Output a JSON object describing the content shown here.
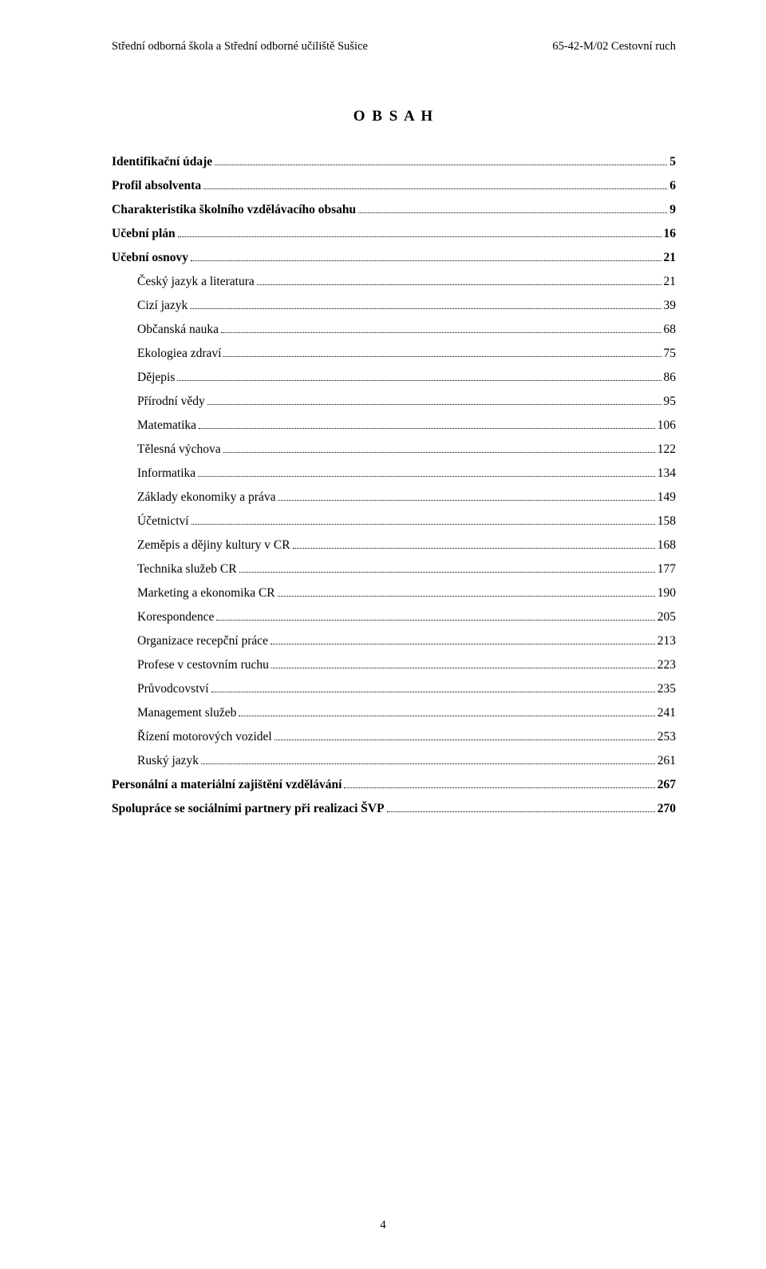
{
  "header": {
    "left": "Střední odborná škola a Střední odborné učiliště Sušice",
    "right": "65-42-M/02 Cestovní ruch"
  },
  "title": "O B S A H",
  "toc": [
    {
      "label": "Identifikační údaje",
      "page": "5",
      "bold": true,
      "indent": false
    },
    {
      "label": "Profil absolventa",
      "page": "6",
      "bold": true,
      "indent": false
    },
    {
      "label": "Charakteristika školního vzdělávacího obsahu",
      "page": "9",
      "bold": true,
      "indent": false
    },
    {
      "label": "Učební plán",
      "page": "16",
      "bold": true,
      "indent": false
    },
    {
      "label": "Učební osnovy",
      "page": "21",
      "bold": true,
      "indent": false
    },
    {
      "label": "Český jazyk a literatura",
      "page": "21",
      "bold": false,
      "indent": true
    },
    {
      "label": "Cizí jazyk",
      "page": "39",
      "bold": false,
      "indent": true
    },
    {
      "label": "Občanská nauka",
      "page": "68",
      "bold": false,
      "indent": true
    },
    {
      "label": "Ekologiea zdraví",
      "page": "75",
      "bold": false,
      "indent": true
    },
    {
      "label": "Dějepis",
      "page": "86",
      "bold": false,
      "indent": true
    },
    {
      "label": "Přírodní vědy",
      "page": "95",
      "bold": false,
      "indent": true
    },
    {
      "label": "Matematika",
      "page": "106",
      "bold": false,
      "indent": true
    },
    {
      "label": "Tělesná výchova",
      "page": "122",
      "bold": false,
      "indent": true
    },
    {
      "label": "Informatika",
      "page": "134",
      "bold": false,
      "indent": true
    },
    {
      "label": "Základy ekonomiky a práva",
      "page": "149",
      "bold": false,
      "indent": true
    },
    {
      "label": "Účetnictví",
      "page": "158",
      "bold": false,
      "indent": true
    },
    {
      "label": "Zeměpis a dějiny kultury v CR",
      "page": "168",
      "bold": false,
      "indent": true
    },
    {
      "label": "Technika služeb CR",
      "page": "177",
      "bold": false,
      "indent": true
    },
    {
      "label": "Marketing a ekonomika CR",
      "page": "190",
      "bold": false,
      "indent": true
    },
    {
      "label": "Korespondence",
      "page": "205",
      "bold": false,
      "indent": true
    },
    {
      "label": "Organizace recepční práce",
      "page": "213",
      "bold": false,
      "indent": true
    },
    {
      "label": "Profese v cestovním ruchu",
      "page": "223",
      "bold": false,
      "indent": true
    },
    {
      "label": "Průvodcovství",
      "page": "235",
      "bold": false,
      "indent": true
    },
    {
      "label": "Management služeb",
      "page": "241",
      "bold": false,
      "indent": true
    },
    {
      "label": "Řízení motorových vozidel",
      "page": "253",
      "bold": false,
      "indent": true
    },
    {
      "label": "Ruský jazyk",
      "page": "261",
      "bold": false,
      "indent": true
    },
    {
      "label": "Personální a materiální zajištění vzdělávání",
      "page": "267",
      "bold": true,
      "indent": false
    },
    {
      "label": "Spolupráce se sociálními partnery při realizaci ŠVP",
      "page": "270",
      "bold": true,
      "indent": false
    }
  ],
  "pageNumber": "4"
}
